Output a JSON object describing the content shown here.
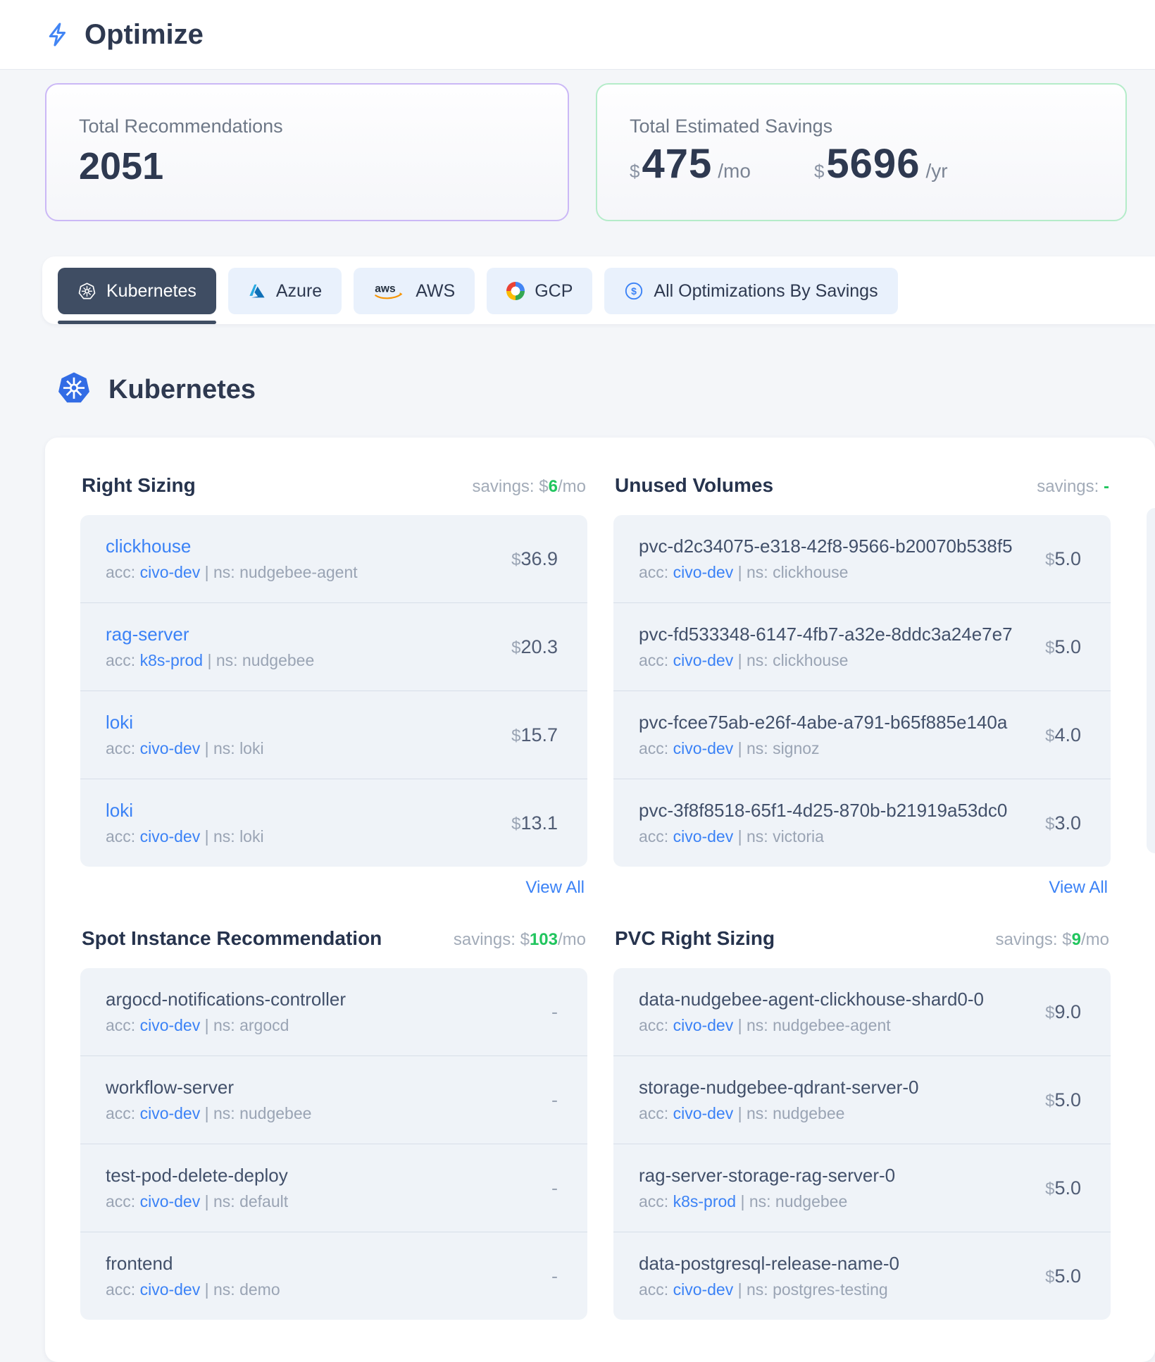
{
  "header": {
    "title": "Optimize"
  },
  "summary": {
    "recommendations": {
      "label": "Total Recommendations",
      "value": "2051"
    },
    "savings": {
      "label": "Total Estimated Savings",
      "monthly": {
        "currency": "$",
        "value": "475",
        "unit": "/mo"
      },
      "yearly": {
        "currency": "$",
        "value": "5696",
        "unit": "/yr"
      }
    }
  },
  "tabs": [
    {
      "id": "kubernetes",
      "label": "Kubernetes",
      "icon": "kubernetes-icon",
      "active": true
    },
    {
      "id": "azure",
      "label": "Azure",
      "icon": "azure-icon",
      "active": false
    },
    {
      "id": "aws",
      "label": "AWS",
      "icon": "aws-icon",
      "active": false
    },
    {
      "id": "gcp",
      "label": "GCP",
      "icon": "gcp-icon",
      "active": false
    },
    {
      "id": "all-optimizations",
      "label": "All Optimizations By Savings",
      "icon": "dollar-circle-icon",
      "active": false
    }
  ],
  "section": {
    "title": "Kubernetes"
  },
  "labels": {
    "savings": "savings: ",
    "acc": "acc: ",
    "ns": "ns: ",
    "divider": "|",
    "view_all": "View All"
  },
  "panels": [
    {
      "title": "Right Sizing",
      "savings": {
        "currency": "$",
        "value": "6",
        "unit": "/mo"
      },
      "view_all": true,
      "items": [
        {
          "name": "clickhouse",
          "name_link": true,
          "acc": "civo-dev",
          "ns": "nudgebee-agent",
          "price": {
            "currency": "$",
            "value": "36.9"
          }
        },
        {
          "name": "rag-server",
          "name_link": true,
          "acc": "k8s-prod",
          "ns": "nudgebee",
          "price": {
            "currency": "$",
            "value": "20.3"
          }
        },
        {
          "name": "loki",
          "name_link": true,
          "acc": "civo-dev",
          "ns": "loki",
          "price": {
            "currency": "$",
            "value": "15.7"
          }
        },
        {
          "name": "loki",
          "name_link": true,
          "acc": "civo-dev",
          "ns": "loki",
          "price": {
            "currency": "$",
            "value": "13.1"
          }
        }
      ]
    },
    {
      "title": "Unused Volumes",
      "savings": {
        "value": "-",
        "empty": true
      },
      "view_all": true,
      "items": [
        {
          "name": "pvc-d2c34075-e318-42f8-9566-b20070b538f5",
          "acc": "civo-dev",
          "ns": "clickhouse",
          "price": {
            "currency": "$",
            "value": "5.0"
          }
        },
        {
          "name": "pvc-fd533348-6147-4fb7-a32e-8ddc3a24e7e7",
          "acc": "civo-dev",
          "ns": "clickhouse",
          "price": {
            "currency": "$",
            "value": "5.0"
          }
        },
        {
          "name": "pvc-fcee75ab-e26f-4abe-a791-b65f885e140a",
          "acc": "civo-dev",
          "ns": "signoz",
          "price": {
            "currency": "$",
            "value": "4.0"
          }
        },
        {
          "name": "pvc-3f8f8518-65f1-4d25-870b-b21919a53dc0",
          "acc": "civo-dev",
          "ns": "victoria",
          "price": {
            "currency": "$",
            "value": "3.0"
          }
        }
      ]
    },
    {
      "title": "Spot Instance Recommendation",
      "savings": {
        "currency": "$",
        "value": "103",
        "unit": "/mo"
      },
      "view_all": false,
      "items": [
        {
          "name": "argocd-notifications-controller",
          "acc": "civo-dev",
          "ns": "argocd",
          "price": {
            "value": "-"
          }
        },
        {
          "name": "workflow-server",
          "acc": "civo-dev",
          "ns": "nudgebee",
          "price": {
            "value": "-"
          }
        },
        {
          "name": "test-pod-delete-deploy",
          "acc": "civo-dev",
          "ns": "default",
          "price": {
            "value": "-"
          }
        },
        {
          "name": "frontend",
          "acc": "civo-dev",
          "ns": "demo",
          "price": {
            "value": "-"
          }
        }
      ]
    },
    {
      "title": "PVC Right Sizing",
      "savings": {
        "currency": "$",
        "value": "9",
        "unit": "/mo"
      },
      "view_all": false,
      "items": [
        {
          "name": "data-nudgebee-agent-clickhouse-shard0-0",
          "acc": "civo-dev",
          "ns": "nudgebee-agent",
          "price": {
            "currency": "$",
            "value": "9.0"
          }
        },
        {
          "name": "storage-nudgebee-qdrant-server-0",
          "acc": "civo-dev",
          "ns": "nudgebee",
          "price": {
            "currency": "$",
            "value": "5.0"
          }
        },
        {
          "name": "rag-server-storage-rag-server-0",
          "acc": "k8s-prod",
          "ns": "nudgebee",
          "price": {
            "currency": "$",
            "value": "5.0"
          }
        },
        {
          "name": "data-postgresql-release-name-0",
          "acc": "civo-dev",
          "ns": "postgres-testing",
          "price": {
            "currency": "$",
            "value": "5.0"
          }
        }
      ]
    }
  ],
  "colors": {
    "accent_blue": "#3b82f6",
    "savings_green": "#21c55e",
    "dark_navy": "#2e3950",
    "purple_border": "#cbb8f6",
    "green_border": "#b4ecc9",
    "tab_active_bg": "#3f4d63",
    "tab_inactive_bg": "#e9f1fc",
    "list_bg": "#eff3f8",
    "kubernetes_blue": "#326ce5"
  }
}
